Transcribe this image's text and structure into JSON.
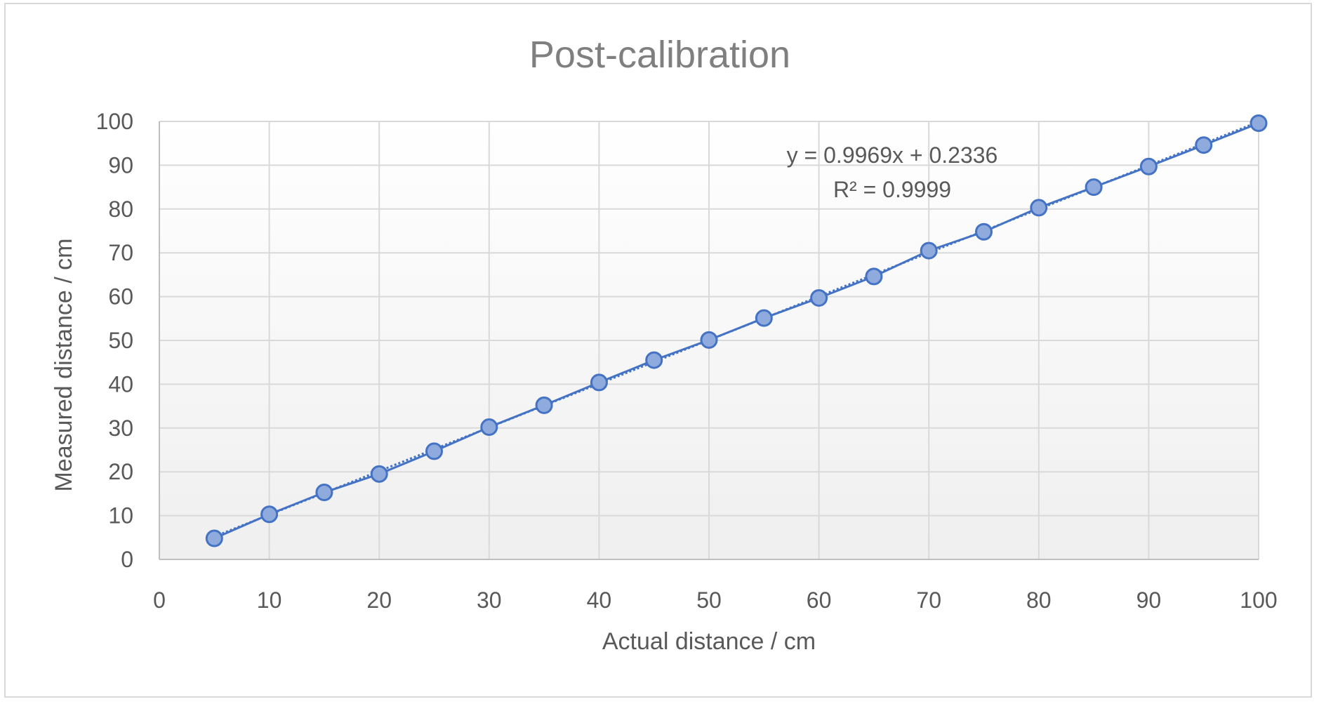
{
  "chart_data": {
    "type": "scatter",
    "title": "Post-calibration",
    "xlabel": "Actual distance / cm",
    "ylabel": "Measured distance / cm",
    "xlim": [
      0,
      100
    ],
    "ylim": [
      0,
      100
    ],
    "xticks": [
      "0",
      "10",
      "20",
      "30",
      "40",
      "50",
      "60",
      "70",
      "80",
      "90",
      "100"
    ],
    "yticks": [
      "0",
      "10",
      "20",
      "30",
      "40",
      "50",
      "60",
      "70",
      "80",
      "90",
      "100"
    ],
    "grid": true,
    "series": [
      {
        "x": [
          5,
          10,
          15,
          20,
          25,
          30,
          35,
          40,
          45,
          50,
          55,
          60,
          65,
          70,
          75,
          80,
          85,
          90,
          95,
          100
        ],
        "y": [
          4.8,
          10.3,
          15.3,
          19.5,
          24.7,
          30.2,
          35.2,
          40.4,
          45.5,
          50.1,
          55.1,
          59.7,
          64.6,
          70.5,
          74.8,
          80.3,
          85.0,
          89.7,
          94.6,
          99.6
        ],
        "color": "#4472c4",
        "fill": "#8faadc"
      }
    ],
    "trendline": {
      "type": "linear",
      "slope": 0.9969,
      "intercept": 0.2336,
      "equation_label": "y = 0.9969x + 0.2336",
      "r2_label": "R² = 0.9999"
    }
  }
}
